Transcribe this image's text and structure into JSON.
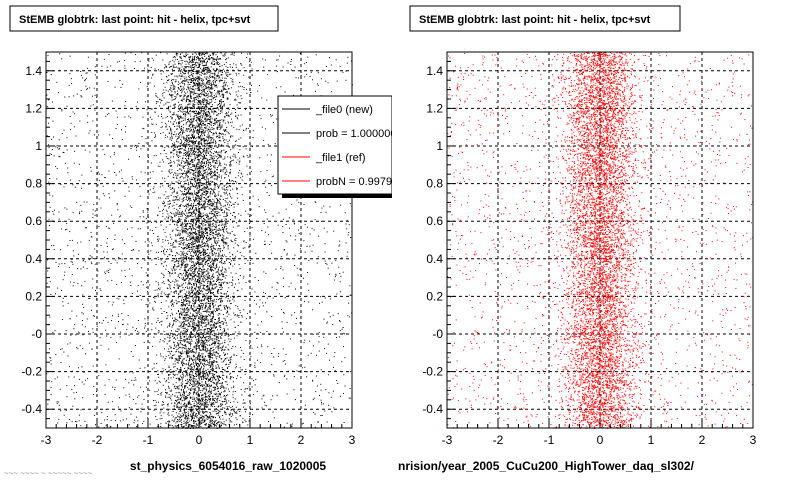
{
  "chart_data": [
    {
      "type": "scatter",
      "title": "StEMB globtrk: last point: hit - helix, tpc+svt",
      "xlabel": "st_physics_6054016_raw_1020005",
      "ylabel": "",
      "xlim": [
        -3,
        3
      ],
      "ylim": [
        -0.5,
        1.5
      ],
      "x_ticks": [
        "-3",
        "-2",
        "-1",
        "0",
        "1",
        "2",
        "3"
      ],
      "y_ticks": [
        "-0.4",
        "-0.2",
        "-0",
        "0.2",
        "0.4",
        "0.6",
        "0.8",
        "1",
        "1.2",
        "1.4"
      ],
      "grid": true,
      "legend_position": "top-right",
      "point_color": "#000000",
      "distribution": {
        "x_center": 0.0,
        "x_spread": 0.35,
        "x_tail": 3.0,
        "y_range": [
          -0.5,
          1.5
        ],
        "count": 9000
      },
      "series": [
        {
          "name": "_file0 (new)"
        }
      ],
      "legend": {
        "entries": [
          {
            "label": "_file0 (new)",
            "color": "#000000"
          },
          {
            "label": "prob = 1.000000",
            "color": "#000000"
          },
          {
            "label": "_file1 (ref)",
            "color": "#ff0000"
          },
          {
            "label": "probN = 0.997910",
            "color": "#ff0000"
          }
        ]
      }
    },
    {
      "type": "scatter",
      "title": "StEMB globtrk: last point: hit - helix, tpc+svt",
      "xlabel": "nrision/year_2005_CuCu200_HighTower_daq_sl302/",
      "ylabel": "",
      "xlim": [
        -3,
        3
      ],
      "ylim": [
        -0.5,
        1.5
      ],
      "x_ticks": [
        "-3",
        "-2",
        "-1",
        "0",
        "1",
        "2",
        "3"
      ],
      "y_ticks": [
        "-0.4",
        "-0.2",
        "-0",
        "0.2",
        "0.4",
        "0.6",
        "0.8",
        "1",
        "1.2",
        "1.4"
      ],
      "grid": true,
      "point_color": "#ff0000",
      "distribution": {
        "x_center": 0.0,
        "x_spread": 0.35,
        "x_tail": 3.0,
        "y_range": [
          -0.5,
          1.5
        ],
        "count": 9000
      },
      "series": [
        {
          "name": "_file1 (ref)"
        }
      ]
    }
  ],
  "footer": "~~~ ~~~~ ~ ~~~~~ ~~~~"
}
